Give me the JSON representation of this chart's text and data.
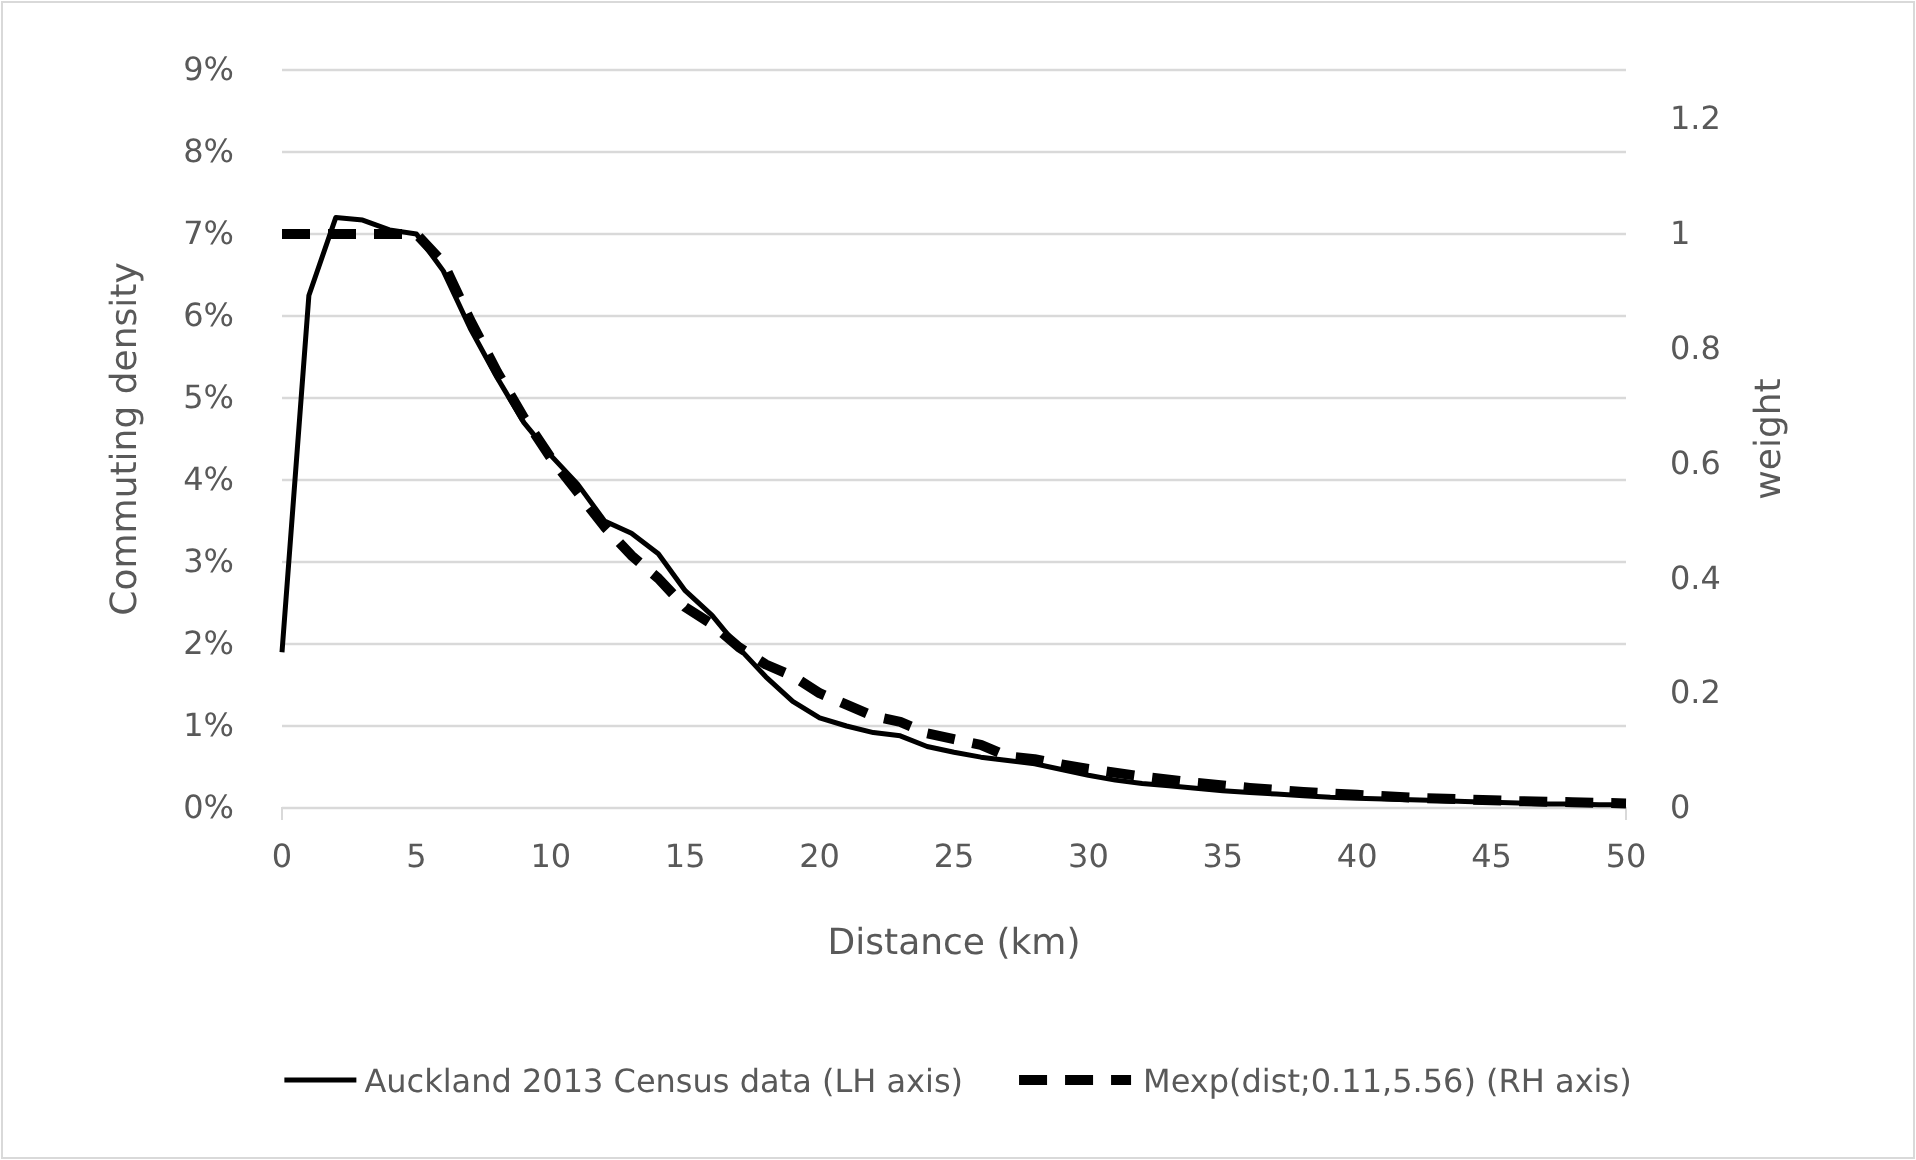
{
  "chart_data": {
    "type": "line",
    "xlabel": "Distance (km)",
    "ylabel": "Commuting density",
    "y2label": "weight",
    "xlim": [
      0,
      50
    ],
    "xticks": [
      0,
      5,
      10,
      15,
      20,
      25,
      30,
      35,
      40,
      45,
      50
    ],
    "ylim": [
      0,
      9
    ],
    "yticks": [
      {
        "value": 0,
        "label": "0%"
      },
      {
        "value": 1,
        "label": "1%"
      },
      {
        "value": 2,
        "label": "2%"
      },
      {
        "value": 3,
        "label": "3%"
      },
      {
        "value": 4,
        "label": "4%"
      },
      {
        "value": 5,
        "label": "5%"
      },
      {
        "value": 6,
        "label": "6%"
      },
      {
        "value": 7,
        "label": "7%"
      },
      {
        "value": 8,
        "label": "8%"
      },
      {
        "value": 9,
        "label": "9%"
      }
    ],
    "y2lim": [
      0,
      1.2857
    ],
    "y2ticks": [
      {
        "value": 0,
        "label": "0"
      },
      {
        "value": 0.2,
        "label": "0.2"
      },
      {
        "value": 0.4,
        "label": "0.4"
      },
      {
        "value": 0.6,
        "label": "0.6"
      },
      {
        "value": 0.8,
        "label": "0.8"
      },
      {
        "value": 1,
        "label": "1"
      },
      {
        "value": 1.2,
        "label": "1.2"
      }
    ],
    "grid": "y",
    "legend": "bottom",
    "series": [
      {
        "name": "Auckland 2013 Census data (LH axis)",
        "color": "#000000",
        "line_style": "solid",
        "x": [
          0,
          1,
          2,
          3,
          4,
          5,
          6,
          7,
          8,
          9,
          10,
          11,
          12,
          13,
          14,
          15,
          16,
          17,
          18,
          19,
          20,
          21,
          22,
          23,
          24,
          25,
          26,
          27,
          28,
          29,
          30,
          31,
          32,
          33,
          34,
          35,
          36,
          37,
          38,
          39,
          40,
          41,
          42,
          43,
          44,
          45,
          46,
          47,
          48,
          49,
          50
        ],
        "values": [
          1.9,
          6.25,
          7.2,
          7.17,
          7.05,
          7.0,
          6.55,
          5.85,
          5.25,
          4.7,
          4.3,
          3.95,
          3.5,
          3.35,
          3.1,
          2.65,
          2.35,
          1.95,
          1.6,
          1.3,
          1.1,
          1.0,
          0.92,
          0.88,
          0.75,
          0.68,
          0.62,
          0.58,
          0.54,
          0.47,
          0.4,
          0.34,
          0.3,
          0.27,
          0.24,
          0.21,
          0.19,
          0.17,
          0.15,
          0.13,
          0.12,
          0.11,
          0.1,
          0.09,
          0.08,
          0.07,
          0.06,
          0.05,
          0.05,
          0.04,
          0.04
        ]
      },
      {
        "name": "Mexp(dist;0.11,5.56) (RH axis)",
        "color": "#000000",
        "line_style": "dashed",
        "axis": "y2",
        "x": [
          0,
          1,
          2,
          3,
          4,
          5,
          6,
          7,
          8,
          9,
          10,
          11,
          12,
          13,
          14,
          15,
          16,
          17,
          18,
          19,
          20,
          21,
          22,
          23,
          24,
          25,
          26,
          27,
          28,
          29,
          30,
          32,
          34,
          36,
          38,
          40,
          42,
          44,
          46,
          48,
          50
        ],
        "values": [
          1,
          1,
          1,
          1,
          1,
          1,
          0.95,
          0.85,
          0.76,
          0.68,
          0.61,
          0.55,
          0.49,
          0.44,
          0.4,
          0.35,
          0.32,
          0.28,
          0.25,
          0.23,
          0.2,
          0.18,
          0.16,
          0.15,
          0.13,
          0.12,
          0.11,
          0.09,
          0.085,
          0.076,
          0.068,
          0.055,
          0.044,
          0.035,
          0.028,
          0.023,
          0.018,
          0.015,
          0.012,
          0.01,
          0.008
        ]
      }
    ]
  }
}
